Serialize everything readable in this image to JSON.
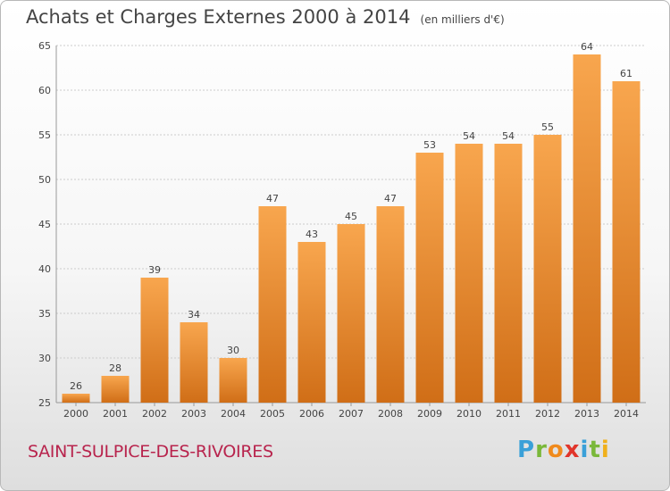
{
  "page": {
    "title": "Achats et Charges Externes 2000 à 2014",
    "unit": "(en milliers d'€)",
    "commune": "SAINT-SULPICE-DES-RIVOIRES",
    "logo": [
      "P",
      "r",
      "o",
      "x",
      "i",
      "t",
      "i"
    ]
  },
  "colors": {
    "bar_top": "#f8a64e",
    "bar_bottom": "#d06e17",
    "grid": "#cccccc",
    "commune": "#b8244d"
  },
  "chart_data": {
    "type": "bar",
    "title": "Achats et Charges Externes 2000 à 2014",
    "subtitle": "(en milliers d'€)",
    "categories": [
      "2000",
      "2001",
      "2002",
      "2003",
      "2004",
      "2005",
      "2006",
      "2007",
      "2008",
      "2009",
      "2010",
      "2011",
      "2012",
      "2013",
      "2014"
    ],
    "values": [
      26,
      28,
      39,
      34,
      30,
      47,
      43,
      45,
      47,
      53,
      54,
      54,
      55,
      64,
      61
    ],
    "ylim": [
      25,
      65
    ],
    "yticks": [
      25,
      30,
      35,
      40,
      45,
      50,
      55,
      60,
      65
    ],
    "grid": true,
    "legend": "none"
  }
}
